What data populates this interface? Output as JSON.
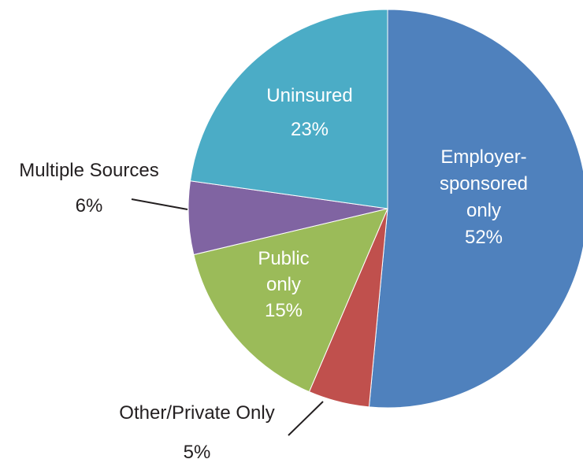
{
  "chart_data": {
    "type": "pie",
    "title": "",
    "slices": [
      {
        "name": "Employer-sponsored only",
        "label_lines": [
          "Employer-",
          "sponsored",
          "only"
        ],
        "value": 52,
        "value_label": "52%",
        "color": "#4F81BD",
        "label_inside": true
      },
      {
        "name": "Other/Private Only",
        "label_lines": [
          "Other/Private Only"
        ],
        "value": 5,
        "value_label": "5%",
        "color": "#C0504D",
        "label_inside": false
      },
      {
        "name": "Public only",
        "label_lines": [
          "Public",
          "only"
        ],
        "value": 15,
        "value_label": "15%",
        "color": "#9BBB59",
        "label_inside": true
      },
      {
        "name": "Multiple Sources",
        "label_lines": [
          "Multiple Sources"
        ],
        "value": 6,
        "value_label": "6%",
        "color": "#8064A2",
        "label_inside": false
      },
      {
        "name": "Uninsured",
        "label_lines": [
          "Uninsured"
        ],
        "value": 23,
        "value_label": "23%",
        "color": "#4BACC6",
        "label_inside": true
      }
    ],
    "start_angle": "top",
    "direction": "clockwise"
  }
}
